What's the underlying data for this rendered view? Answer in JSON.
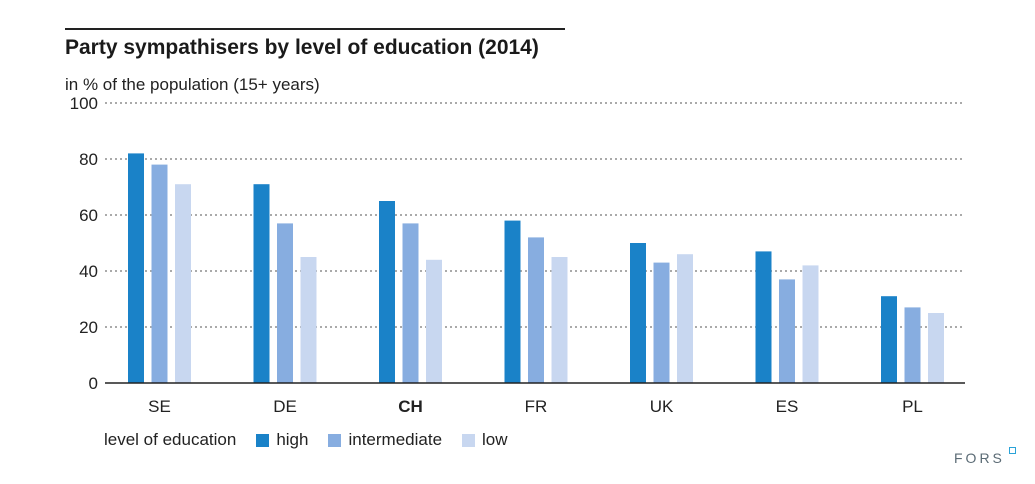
{
  "chart_data": {
    "type": "bar",
    "title": "Party sympathisers by level of education (2014)",
    "subtitle": "in % of the population (15+ years)",
    "categories": [
      "SE",
      "DE",
      "CH",
      "FR",
      "UK",
      "ES",
      "PL"
    ],
    "highlight_category": "CH",
    "series": [
      {
        "name": "high",
        "color": "#1a82c8",
        "values": [
          82,
          71,
          65,
          58,
          50,
          47,
          31
        ]
      },
      {
        "name": "intermediate",
        "color": "#87ade0",
        "values": [
          78,
          57,
          57,
          52,
          43,
          37,
          27
        ]
      },
      {
        "name": "low",
        "color": "#c8d7f0",
        "values": [
          71,
          45,
          44,
          45,
          46,
          42,
          25
        ]
      }
    ],
    "ylim": [
      0,
      100
    ],
    "yticks": [
      0,
      20,
      40,
      60,
      80,
      100
    ],
    "grid": true,
    "legend_title": "level of education",
    "legend_position": "bottom-left"
  },
  "brand": "FORS"
}
